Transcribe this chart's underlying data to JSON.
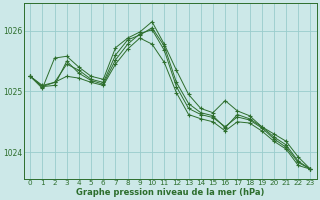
{
  "background_color": "#cce8e8",
  "grid_color": "#99cccc",
  "line_color": "#2d6e2d",
  "marker_color": "#2d6e2d",
  "xlabel": "Graphe pression niveau de la mer (hPa)",
  "ylim": [
    1023.55,
    1026.45
  ],
  "yticks": [
    1024,
    1025,
    1026
  ],
  "xlim": [
    -0.5,
    23.5
  ],
  "xticks": [
    0,
    1,
    2,
    3,
    4,
    5,
    6,
    7,
    8,
    9,
    10,
    11,
    12,
    13,
    14,
    15,
    16,
    17,
    18,
    19,
    20,
    21,
    22,
    23
  ],
  "series": [
    [
      1025.25,
      1025.1,
      1025.15,
      1025.45,
      1025.35,
      1025.2,
      1025.15,
      1025.6,
      1025.85,
      1025.93,
      1026.05,
      1025.75,
      1025.15,
      1024.8,
      1024.65,
      1024.6,
      1024.4,
      1024.62,
      1024.55,
      1024.42,
      1024.25,
      1024.12,
      1023.85,
      1023.72
    ],
    [
      1025.25,
      1025.08,
      1025.1,
      1025.5,
      1025.3,
      1025.18,
      1025.12,
      1025.52,
      1025.78,
      1025.95,
      1026.02,
      1025.68,
      1025.08,
      1024.72,
      1024.62,
      1024.57,
      1024.42,
      1024.58,
      1024.53,
      1024.4,
      1024.22,
      1024.08,
      1023.83,
      1023.72
    ],
    [
      1025.25,
      1025.05,
      1025.55,
      1025.58,
      1025.4,
      1025.25,
      1025.2,
      1025.72,
      1025.88,
      1025.98,
      1026.15,
      1025.78,
      1025.35,
      1024.95,
      1024.72,
      1024.65,
      1024.85,
      1024.68,
      1024.6,
      1024.42,
      1024.3,
      1024.18,
      1023.92,
      1023.72
    ],
    [
      1025.25,
      1025.08,
      1025.15,
      1025.25,
      1025.22,
      1025.15,
      1025.1,
      1025.45,
      1025.7,
      1025.88,
      1025.78,
      1025.48,
      1024.98,
      1024.62,
      1024.55,
      1024.5,
      1024.35,
      1024.5,
      1024.48,
      1024.35,
      1024.18,
      1024.05,
      1023.78,
      1023.72
    ]
  ]
}
